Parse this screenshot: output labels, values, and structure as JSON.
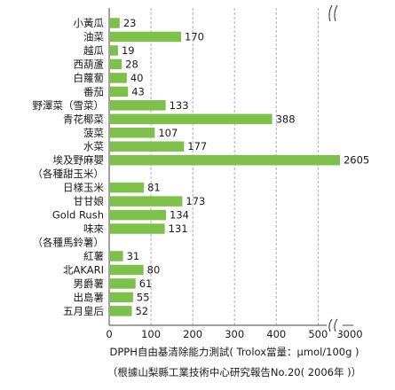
{
  "chart_data": {
    "type": "bar",
    "orientation": "horizontal",
    "bar_color": "#7dc04a",
    "categories": [
      "小黃瓜",
      "油菜",
      "越瓜",
      "西葫蘆",
      "白蘿蔔",
      "番茄",
      "野澤菜（雪菜）",
      "青花椰菜",
      "菠菜",
      "水菜",
      "埃及野麻嬰",
      "（各種甜玉米）",
      "日樣玉米",
      "甘甘娘",
      "Gold Rush",
      "味來",
      "（各種馬鈴薯）",
      "紅薯",
      "北AKARI",
      "男爵薯",
      "出島薯",
      "五月皇后"
    ],
    "values": [
      23,
      170,
      19,
      28,
      40,
      43,
      133,
      388,
      107,
      177,
      2605,
      null,
      81,
      173,
      134,
      131,
      null,
      31,
      80,
      61,
      55,
      52
    ],
    "value_labels": [
      "23",
      "170",
      "19",
      "28",
      "40",
      "43",
      "133",
      "388",
      "107",
      "177",
      "2605",
      "",
      "81",
      "173",
      "134",
      "131",
      "",
      "31",
      "80",
      "61",
      "55",
      "52"
    ],
    "x_ticks": [
      "0",
      "100",
      "200",
      "300",
      "400",
      "500",
      "3000"
    ],
    "x_tick_values": [
      0,
      100,
      200,
      300,
      400,
      500,
      3000
    ],
    "axis_break": [
      550,
      2950
    ],
    "xlim": [
      0,
      3000
    ],
    "grid": "vertical dashed",
    "xlabel": "DPPH自由基清除能力測試( Trolox當量：μmol/100g )",
    "note": "（根據山梨縣工業技術中心研究報告No.20( 2006年 )）"
  }
}
